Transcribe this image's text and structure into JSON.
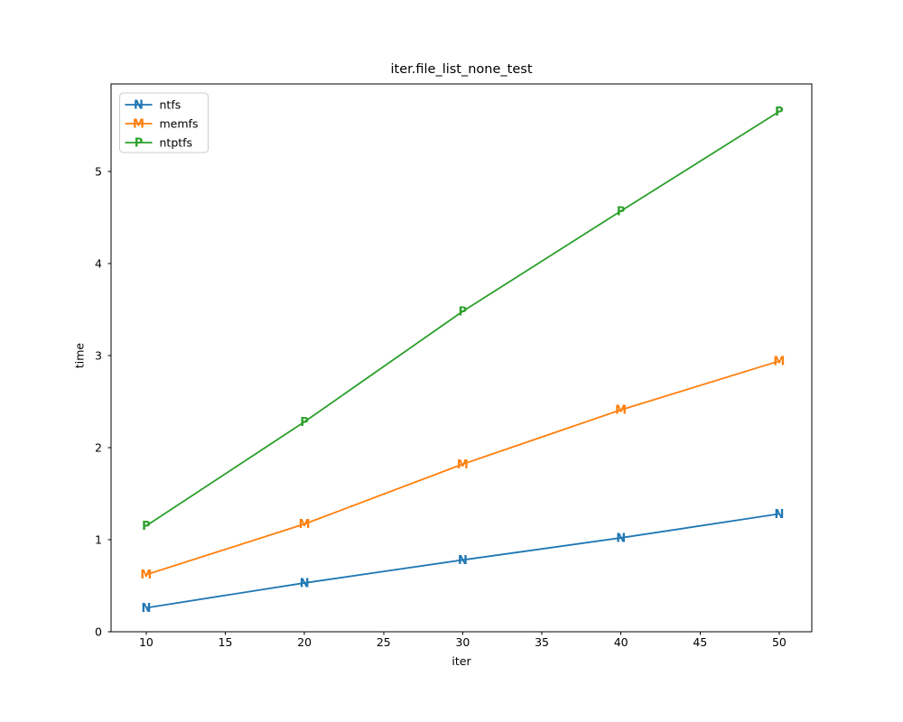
{
  "title": "iter.file_list_none_test",
  "chart_data": {
    "type": "line",
    "title": "iter.file_list_none_test",
    "xlabel": "iter",
    "ylabel": "time",
    "x": [
      10,
      20,
      30,
      40,
      50
    ],
    "series": [
      {
        "name": "ntfs",
        "marker": "N",
        "color": "#1f77b4",
        "values": [
          0.26,
          0.53,
          0.78,
          1.02,
          1.28
        ]
      },
      {
        "name": "memfs",
        "marker": "M",
        "color": "#ff7f0e",
        "values": [
          0.62,
          1.17,
          1.82,
          2.41,
          2.94
        ]
      },
      {
        "name": "ntptfs",
        "marker": "P",
        "color": "#2ca02c",
        "values": [
          1.15,
          2.28,
          3.48,
          4.57,
          5.65
        ]
      }
    ],
    "xticks": [
      10,
      15,
      20,
      25,
      30,
      35,
      40,
      45,
      50
    ],
    "yticks": [
      0,
      1,
      2,
      3,
      4,
      5
    ],
    "xlim": [
      7.78,
      52.06
    ],
    "ylim": [
      0,
      5.95
    ],
    "grid": false,
    "legend_position": "upper left",
    "axis_color": "#000000",
    "legend_border_color": "#cccccc",
    "background_color": "#ffffff"
  }
}
